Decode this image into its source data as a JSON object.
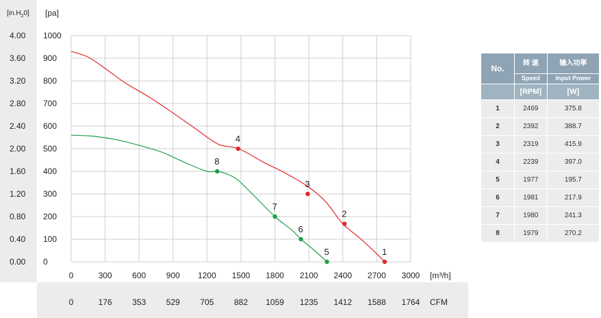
{
  "chart_data": {
    "type": "line",
    "x_axis": {
      "label": "[m³/h]",
      "range": [
        0,
        3000
      ],
      "ticks": [
        0,
        300,
        600,
        900,
        1200,
        1500,
        1800,
        2100,
        2400,
        2700,
        3000
      ]
    },
    "x2_axis": {
      "label": "CFM",
      "ticks": [
        "0",
        "176",
        "353",
        "529",
        "705",
        "882",
        "1059",
        "1235",
        "1412",
        "1588",
        "1764"
      ]
    },
    "y_axis": {
      "label": "[pa]",
      "range": [
        0,
        1000
      ],
      "ticks": [
        0,
        100,
        200,
        300,
        400,
        500,
        600,
        700,
        800,
        900,
        1000
      ]
    },
    "y2_axis": {
      "label_main": "[in.H",
      "label_sub": "2",
      "label_end": "0]",
      "ticks": [
        "0.00",
        "0.40",
        "0.80",
        "1.20",
        "1.60",
        "2.00",
        "2.40",
        "2.80",
        "3.20",
        "3.60",
        "4.00"
      ]
    },
    "grid": true,
    "series": [
      {
        "color": "#e0262b",
        "curve": [
          [
            0,
            930
          ],
          [
            150,
            905
          ],
          [
            300,
            855
          ],
          [
            480,
            790
          ],
          [
            700,
            725
          ],
          [
            900,
            658
          ],
          [
            1100,
            588
          ],
          [
            1300,
            520
          ],
          [
            1480,
            500
          ],
          [
            1700,
            440
          ],
          [
            1900,
            390
          ],
          [
            2100,
            330
          ],
          [
            2250,
            265
          ],
          [
            2400,
            168
          ],
          [
            2550,
            105
          ],
          [
            2700,
            35
          ],
          [
            2770,
            0
          ]
        ],
        "points": [
          {
            "label": "1",
            "x": 2770,
            "y": 0
          },
          {
            "label": "2",
            "x": 2415,
            "y": 168
          },
          {
            "label": "3",
            "x": 2090,
            "y": 300
          },
          {
            "label": "4",
            "x": 1475,
            "y": 500
          }
        ]
      },
      {
        "color": "#1f9f4a",
        "curve": [
          [
            0,
            560
          ],
          [
            200,
            555
          ],
          [
            400,
            540
          ],
          [
            600,
            515
          ],
          [
            800,
            485
          ],
          [
            1000,
            440
          ],
          [
            1200,
            400
          ],
          [
            1300,
            400
          ],
          [
            1450,
            370
          ],
          [
            1600,
            300
          ],
          [
            1800,
            200
          ],
          [
            1950,
            140
          ],
          [
            2030,
            100
          ],
          [
            2150,
            50
          ],
          [
            2260,
            0
          ]
        ],
        "points": [
          {
            "label": "5",
            "x": 2260,
            "y": 0
          },
          {
            "label": "6",
            "x": 2030,
            "y": 100
          },
          {
            "label": "7",
            "x": 1800,
            "y": 200
          },
          {
            "label": "8",
            "x": 1290,
            "y": 400
          }
        ]
      }
    ]
  },
  "table": {
    "headers": {
      "no": "No.",
      "speed_cn": "转 速",
      "speed_en": "Speed",
      "power_cn": "输入功率",
      "power_en": "Input Power",
      "speed_unit": "[RPM]",
      "power_unit": "[W]"
    },
    "rows": [
      {
        "no": "1",
        "rpm": "2469",
        "power": "375.8"
      },
      {
        "no": "2",
        "rpm": "2392",
        "power": "388.7"
      },
      {
        "no": "3",
        "rpm": "2319",
        "power": "415.9"
      },
      {
        "no": "4",
        "rpm": "2239",
        "power": "397.0"
      },
      {
        "no": "5",
        "rpm": "1977",
        "power": "195.7"
      },
      {
        "no": "6",
        "rpm": "1981",
        "power": "217.9"
      },
      {
        "no": "7",
        "rpm": "1980",
        "power": "241.3"
      },
      {
        "no": "8",
        "rpm": "1979",
        "power": "270.2"
      }
    ]
  }
}
